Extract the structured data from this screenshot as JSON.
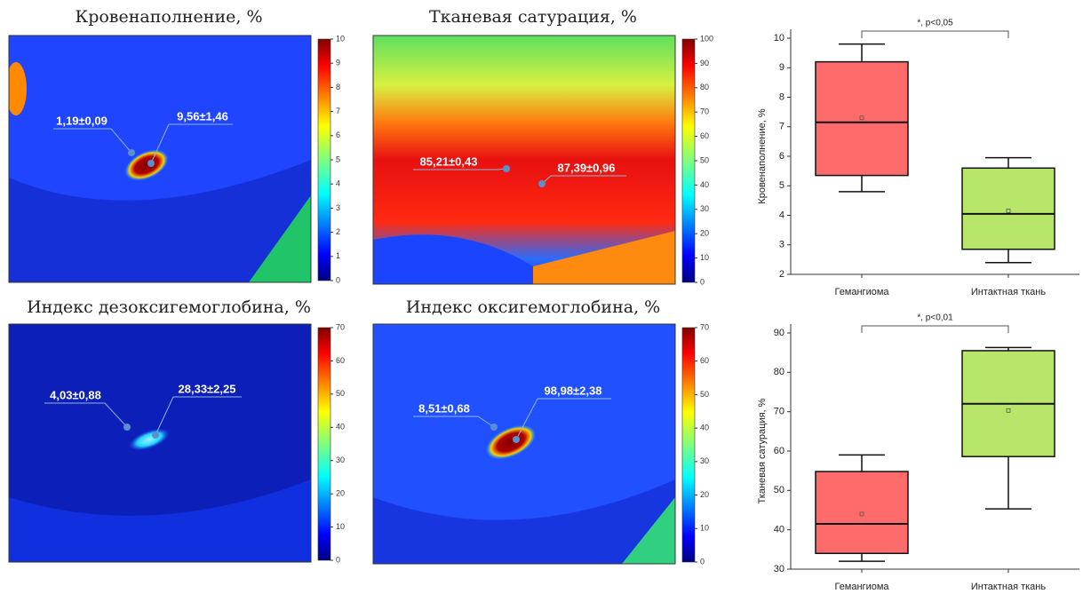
{
  "panels": [
    {
      "title": "Кровенаполнение, %",
      "clim": [
        0,
        10
      ],
      "cticks": [
        0,
        1,
        2,
        3,
        4,
        5,
        6,
        7,
        8,
        9,
        10
      ],
      "annotations": [
        "1,19±0,09",
        "9,56±1,46"
      ]
    },
    {
      "title": "Тканевая сатурация, %",
      "clim": [
        0,
        100
      ],
      "cticks": [
        0,
        10,
        20,
        30,
        40,
        50,
        60,
        70,
        80,
        90,
        100
      ],
      "annotations": [
        "85,21±0,43",
        "87,39±0,96"
      ]
    },
    {
      "title": "Индекс дезоксигемоглобина, %",
      "clim": [
        0,
        70
      ],
      "cticks": [
        0,
        10,
        20,
        30,
        40,
        50,
        60,
        70
      ],
      "annotations": [
        "4,03±0,88",
        "28,33±2,25"
      ]
    },
    {
      "title": "Индекс оксигемоглобина, %",
      "clim": [
        0,
        70
      ],
      "cticks": [
        0,
        10,
        20,
        30,
        40,
        50,
        60,
        70
      ],
      "annotations": [
        "8,51±0,68",
        "98,98±2,38"
      ]
    }
  ],
  "chart_data": [
    {
      "type": "box",
      "y_label": "Кровенаполнение, %",
      "categories": [
        "Гемангиома",
        "Интактная ткань"
      ],
      "colors": [
        "#ff6b6b",
        "#b8e66a"
      ],
      "boxes": [
        {
          "min": 4.8,
          "q1": 5.35,
          "median": 7.15,
          "q3": 9.2,
          "max": 9.8,
          "mean": 7.3
        },
        {
          "min": 2.4,
          "q1": 2.85,
          "median": 4.05,
          "q3": 5.6,
          "max": 5.95,
          "mean": 4.15
        }
      ],
      "ylim": [
        2,
        10
      ],
      "yticks": [
        2,
        3,
        4,
        5,
        6,
        7,
        8,
        9,
        10
      ],
      "annotation": "*, p<0,05"
    },
    {
      "type": "box",
      "y_label": "Тканевая сатурация, %",
      "categories": [
        "Гемангиома",
        "Интактная ткань"
      ],
      "colors": [
        "#ff6b6b",
        "#b8e66a"
      ],
      "boxes": [
        {
          "min": 32,
          "q1": 34,
          "median": 41.5,
          "q3": 54.8,
          "max": 59,
          "mean": 44
        },
        {
          "min": 45.3,
          "q1": 58.6,
          "median": 72,
          "q3": 85.5,
          "max": 86.3,
          "mean": 70.3
        }
      ],
      "ylim": [
        30,
        90
      ],
      "yticks": [
        30,
        40,
        50,
        60,
        70,
        80,
        90
      ],
      "annotation": "*, p<0,01"
    }
  ]
}
